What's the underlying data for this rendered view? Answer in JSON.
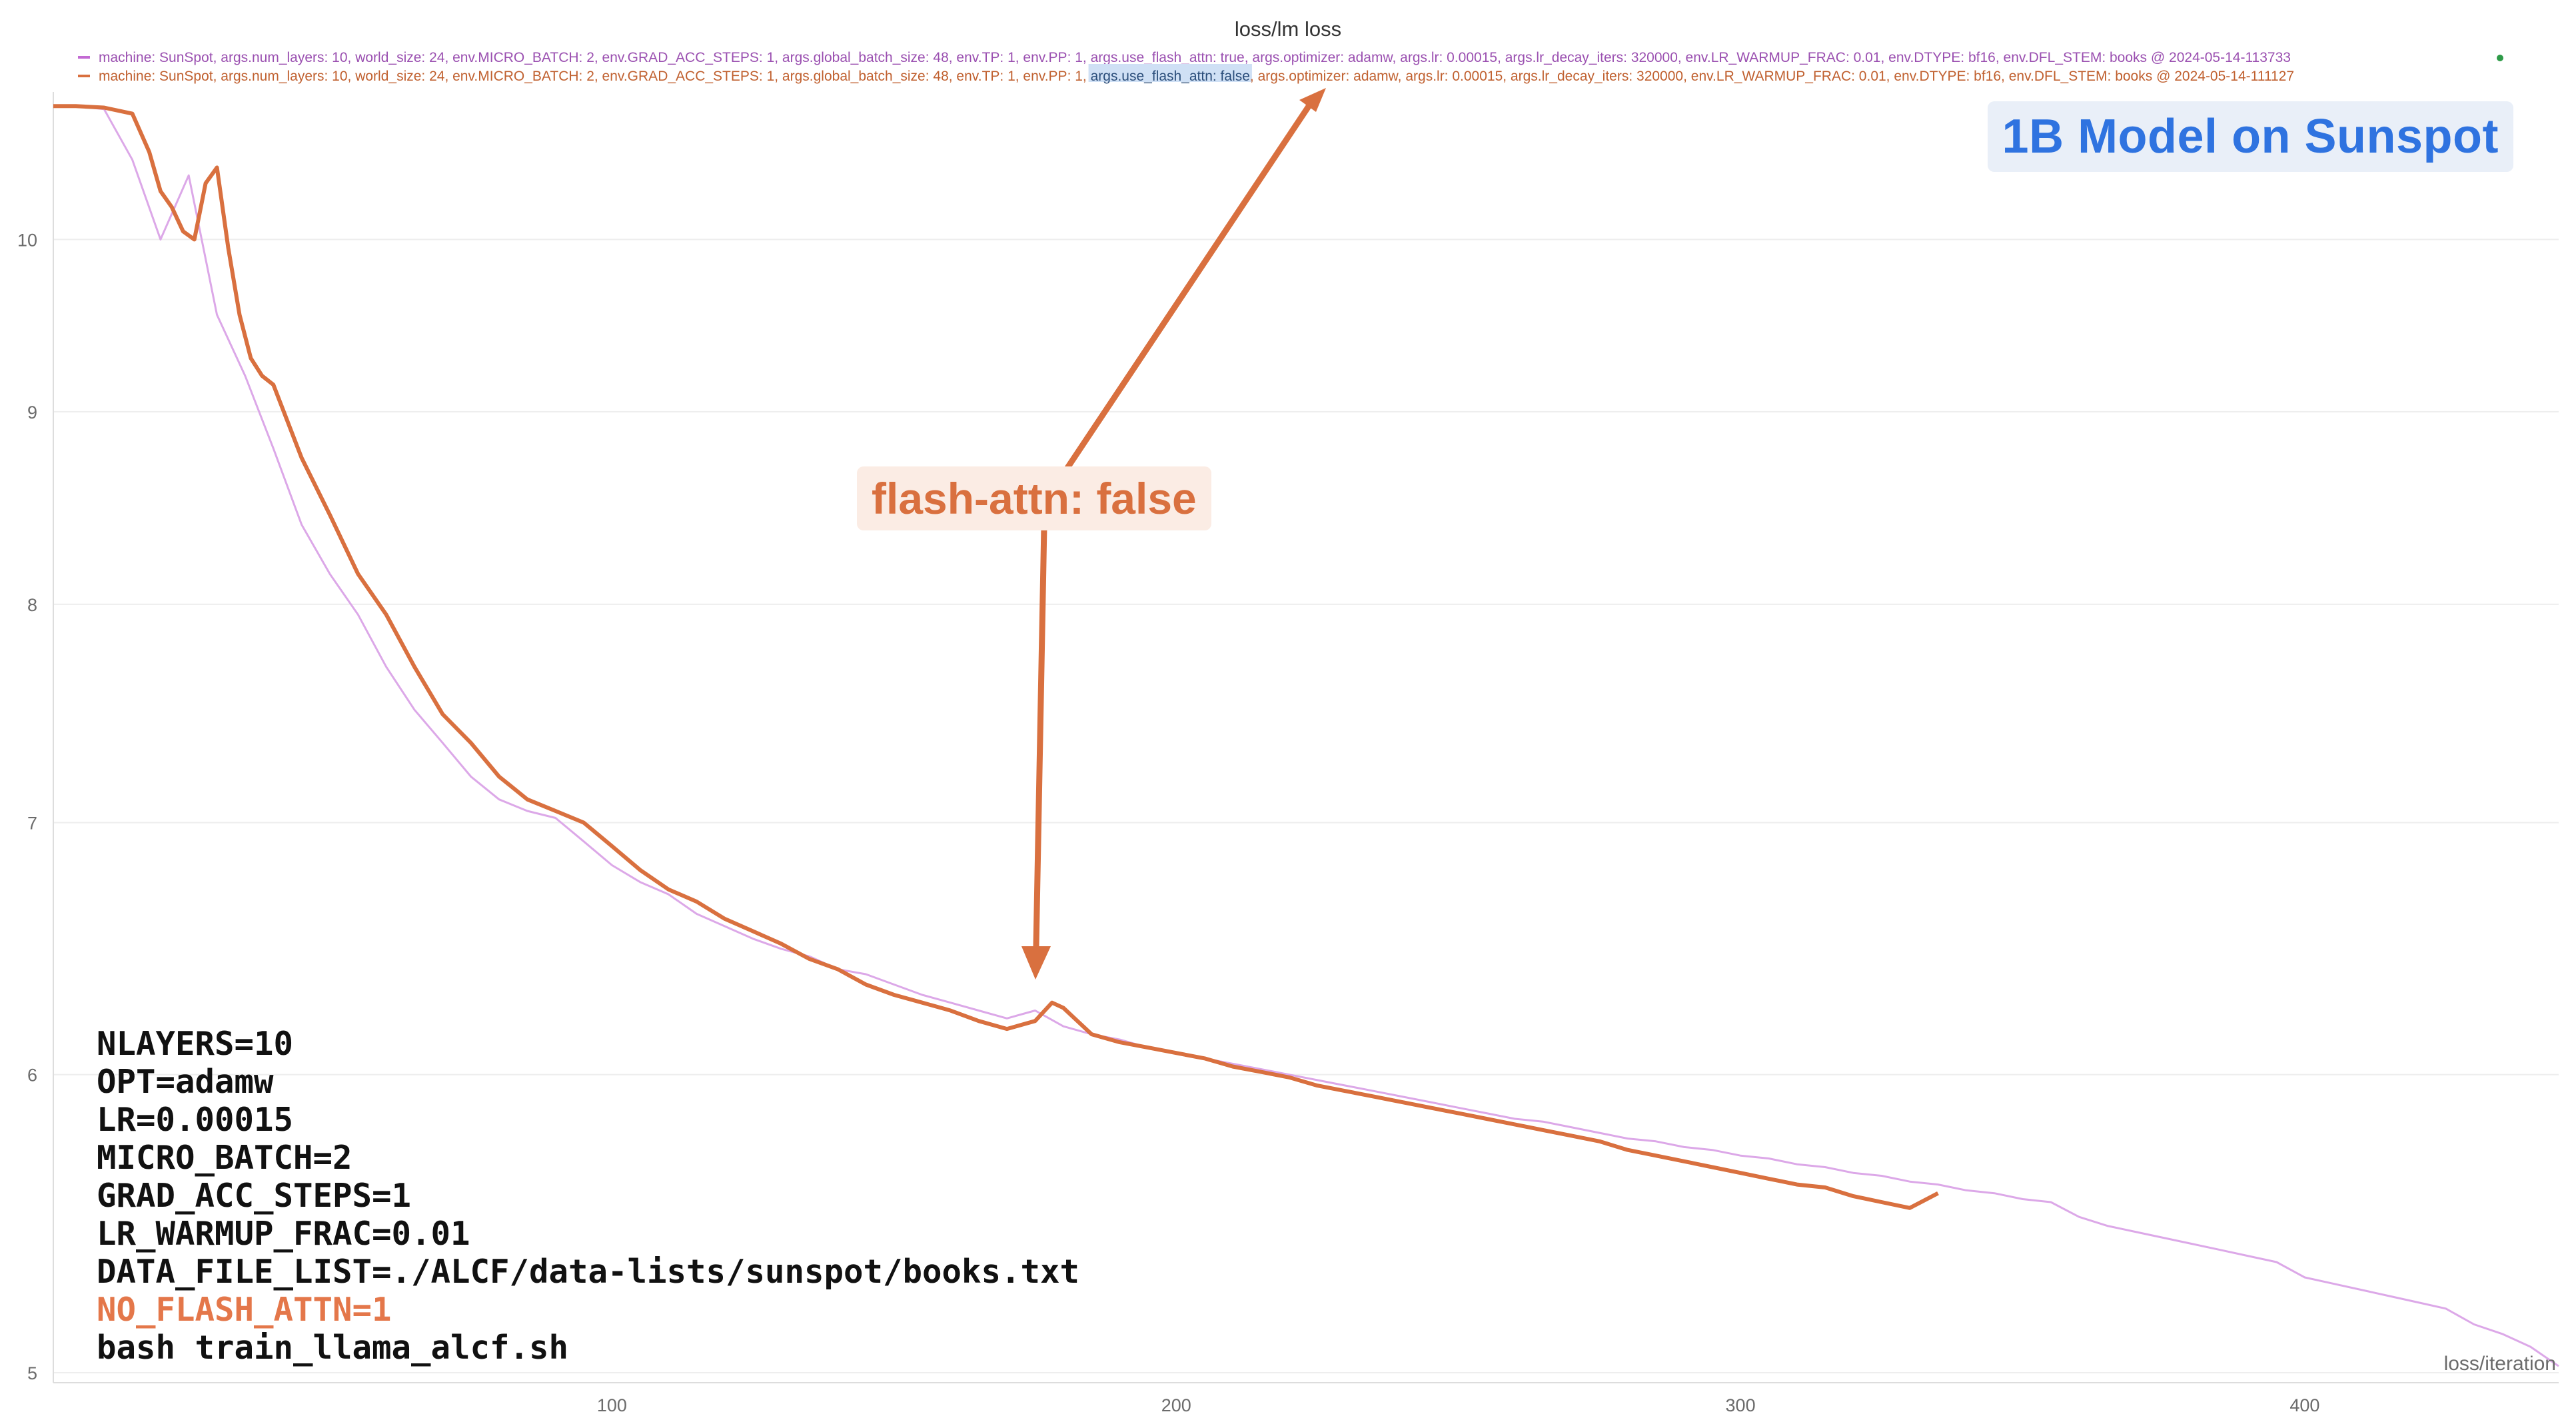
{
  "title": "loss/lm loss",
  "legend": [
    {
      "name": "machine: SunSpot, args.num_layers: 10, world_size: 24, env.MICRO_BATCH: 2, env.GRAD_ACC_STEPS: 1, args.global_batch_size: 48, env.TP: 1, env.PP: 1, args.use_flash_attn: true, args.optimizer: adamw, args.lr: 0.00015, args.lr_decay_iters: 320000, env.LR_WARMUP_FRAC: 0.01, env.DTYPE: bf16, env.DFL_STEM: books @ 2024-05-14-113733",
      "color": "#c36ad3"
    },
    {
      "name_prefix": "machine: SunSpot, args.num_layers: 10, world_size: 24, env.MICRO_BATCH: 2, env.GRAD_ACC_STEPS: 1, args.global_batch_size: 48, env.TP: 1, env.PP: 1, ",
      "name_highlight": "args.use_flash_attn: false",
      "name_suffix": ", args.optimizer: adamw, args.lr: 0.00015, args.lr_decay_iters: 320000, env.LR_WARMUP_FRAC: 0.01, env.DTYPE: bf16, env.DFL_STEM: books @ 2024-05-14-111127",
      "color": "#d9703f"
    }
  ],
  "annotations": {
    "badge": "1B Model on Sunspot",
    "callout": "flash-attn: false"
  },
  "code_lines": [
    {
      "text": "NLAYERS=10",
      "highlight": false
    },
    {
      "text": "OPT=adamw",
      "highlight": false
    },
    {
      "text": "LR=0.00015",
      "highlight": false
    },
    {
      "text": "MICRO_BATCH=2",
      "highlight": false
    },
    {
      "text": "GRAD_ACC_STEPS=1",
      "highlight": false
    },
    {
      "text": "LR_WARMUP_FRAC=0.01",
      "highlight": false
    },
    {
      "text": "DATA_FILE_LIST=./ALCF/data-lists/sunspot/books.txt",
      "highlight": false
    },
    {
      "text": "NO_FLASH_ATTN=1",
      "highlight": true
    },
    {
      "text": "bash train_llama_alcf.sh",
      "highlight": false
    }
  ],
  "chart_data": {
    "type": "line",
    "title": "loss/lm loss",
    "xlabel": "loss/iteration",
    "ylabel": "",
    "xlim": [
      1,
      445
    ],
    "ylim": [
      5,
      10.9
    ],
    "yscale": "log",
    "xticks": [
      100,
      200,
      300,
      400
    ],
    "yticks": [
      5,
      6,
      7,
      8,
      9,
      10
    ],
    "grid": true,
    "series": [
      {
        "name": "machine: SunSpot, args.num_layers: 10, world_size: 24, env.MICRO_BATCH: 2, env.GRAD_ACC_STEPS: 1, args.global_batch_size: 48, env.TP: 1, env.PP: 1, args.use_flash_attn: true, args.optimizer: adamw, args.lr: 0.00015, args.lr_decay_iters: 320000, env.LR_WARMUP_FRAC: 0.01, env.DTYPE: bf16, env.DFL_STEM: books @ 2024-05-14-113733",
        "color": "#dca8e8",
        "x": [
          1,
          5,
          10,
          15,
          20,
          25,
          30,
          35,
          40,
          45,
          50,
          55,
          60,
          65,
          70,
          75,
          80,
          85,
          90,
          95,
          100,
          105,
          110,
          115,
          120,
          125,
          130,
          135,
          140,
          145,
          150,
          155,
          160,
          165,
          170,
          175,
          180,
          185,
          190,
          195,
          200,
          205,
          210,
          215,
          220,
          225,
          230,
          235,
          240,
          245,
          250,
          255,
          260,
          265,
          270,
          275,
          280,
          285,
          290,
          295,
          300,
          305,
          310,
          315,
          320,
          325,
          330,
          335,
          340,
          345,
          350,
          355,
          360,
          365,
          370,
          375,
          380,
          385,
          390,
          395,
          400,
          405,
          410,
          415,
          420,
          425,
          430,
          435,
          440,
          445
        ],
        "y": [
          10.85,
          10.85,
          10.83,
          10.5,
          10.0,
          10.4,
          9.55,
          9.2,
          8.8,
          8.4,
          8.15,
          7.95,
          7.7,
          7.5,
          7.35,
          7.2,
          7.1,
          7.05,
          7.02,
          6.92,
          6.82,
          6.75,
          6.7,
          6.62,
          6.57,
          6.52,
          6.48,
          6.45,
          6.4,
          6.38,
          6.34,
          6.3,
          6.27,
          6.24,
          6.21,
          6.24,
          6.18,
          6.15,
          6.13,
          6.1,
          6.08,
          6.06,
          6.04,
          6.02,
          6.0,
          5.98,
          5.96,
          5.94,
          5.92,
          5.9,
          5.88,
          5.86,
          5.84,
          5.83,
          5.81,
          5.79,
          5.77,
          5.76,
          5.74,
          5.73,
          5.71,
          5.7,
          5.68,
          5.67,
          5.65,
          5.64,
          5.62,
          5.61,
          5.59,
          5.58,
          5.56,
          5.55,
          5.5,
          5.47,
          5.45,
          5.43,
          5.41,
          5.39,
          5.37,
          5.35,
          5.3,
          5.28,
          5.26,
          5.24,
          5.22,
          5.2,
          5.15,
          5.12,
          5.08,
          5.02
        ]
      },
      {
        "name": "machine: SunSpot, args.num_layers: 10, world_size: 24, env.MICRO_BATCH: 2, env.GRAD_ACC_STEPS: 1, args.global_batch_size: 48, env.TP: 1, env.PP: 1, args.use_flash_attn: false, args.optimizer: adamw, args.lr: 0.00015, args.lr_decay_iters: 320000, env.LR_WARMUP_FRAC: 0.01, env.DTYPE: bf16, env.DFL_STEM: books @ 2024-05-14-111127",
        "color": "#d9703f",
        "x": [
          1,
          5,
          10,
          15,
          18,
          20,
          22,
          24,
          26,
          28,
          30,
          32,
          34,
          36,
          38,
          40,
          45,
          50,
          55,
          60,
          65,
          70,
          75,
          80,
          85,
          90,
          95,
          100,
          105,
          110,
          115,
          120,
          125,
          130,
          135,
          140,
          145,
          150,
          155,
          160,
          165,
          170,
          175,
          178,
          180,
          185,
          190,
          195,
          200,
          205,
          210,
          215,
          220,
          225,
          230,
          235,
          240,
          245,
          250,
          255,
          260,
          265,
          270,
          275,
          280,
          285,
          290,
          295,
          300,
          305,
          310,
          315,
          320,
          325,
          330,
          335
        ],
        "y": [
          10.85,
          10.85,
          10.84,
          10.8,
          10.55,
          10.3,
          10.2,
          10.05,
          10.0,
          10.35,
          10.45,
          9.95,
          9.55,
          9.3,
          9.2,
          9.15,
          8.75,
          8.45,
          8.15,
          7.95,
          7.7,
          7.48,
          7.35,
          7.2,
          7.1,
          7.05,
          7.0,
          6.9,
          6.8,
          6.72,
          6.67,
          6.6,
          6.55,
          6.5,
          6.44,
          6.4,
          6.34,
          6.3,
          6.27,
          6.24,
          6.2,
          6.17,
          6.2,
          6.27,
          6.25,
          6.15,
          6.12,
          6.1,
          6.08,
          6.06,
          6.03,
          6.01,
          5.99,
          5.96,
          5.94,
          5.92,
          5.9,
          5.88,
          5.86,
          5.84,
          5.82,
          5.8,
          5.78,
          5.76,
          5.73,
          5.71,
          5.69,
          5.67,
          5.65,
          5.63,
          5.61,
          5.6,
          5.57,
          5.55,
          5.53,
          5.58
        ]
      }
    ]
  }
}
